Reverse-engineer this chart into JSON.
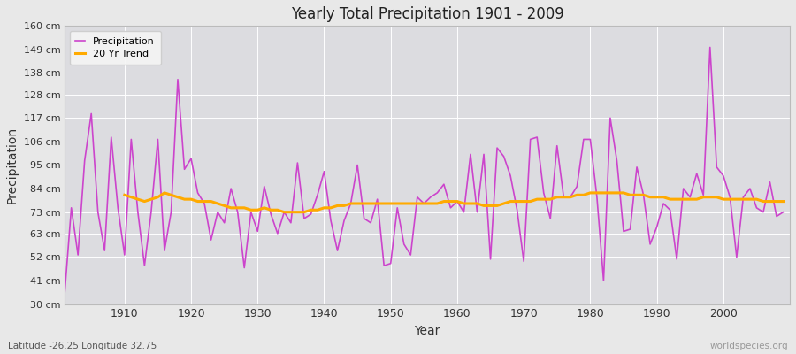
{
  "title": "Yearly Total Precipitation 1901 - 2009",
  "xlabel": "Year",
  "ylabel": "Precipitation",
  "subtitle_left": "Latitude -26.25 Longitude 32.75",
  "subtitle_right": "worldspecies.org",
  "legend_entries": [
    "Precipitation",
    "20 Yr Trend"
  ],
  "precip_color": "#cc44cc",
  "trend_color": "#ffaa00",
  "fig_bg_color": "#e8e8e8",
  "plot_bg_color": "#dcdce0",
  "grid_color": "#ffffff",
  "ylim": [
    30,
    160
  ],
  "yticks": [
    30,
    41,
    52,
    63,
    73,
    84,
    95,
    106,
    117,
    128,
    138,
    149,
    160
  ],
  "ytick_labels": [
    "30 cm",
    "41 cm",
    "52 cm",
    "63 cm",
    "73 cm",
    "84 cm",
    "95 cm",
    "106 cm",
    "117 cm",
    "128 cm",
    "138 cm",
    "149 cm",
    "160 cm"
  ],
  "years": [
    1901,
    1902,
    1903,
    1904,
    1905,
    1906,
    1907,
    1908,
    1909,
    1910,
    1911,
    1912,
    1913,
    1914,
    1915,
    1916,
    1917,
    1918,
    1919,
    1920,
    1921,
    1922,
    1923,
    1924,
    1925,
    1926,
    1927,
    1928,
    1929,
    1930,
    1931,
    1932,
    1933,
    1934,
    1935,
    1936,
    1937,
    1938,
    1939,
    1940,
    1941,
    1942,
    1943,
    1944,
    1945,
    1946,
    1947,
    1948,
    1949,
    1950,
    1951,
    1952,
    1953,
    1954,
    1955,
    1956,
    1957,
    1958,
    1959,
    1960,
    1961,
    1962,
    1963,
    1964,
    1965,
    1966,
    1967,
    1968,
    1969,
    1970,
    1971,
    1972,
    1973,
    1974,
    1975,
    1976,
    1977,
    1978,
    1979,
    1980,
    1981,
    1982,
    1983,
    1984,
    1985,
    1986,
    1987,
    1988,
    1989,
    1990,
    1991,
    1992,
    1993,
    1994,
    1995,
    1996,
    1997,
    1998,
    1999,
    2000,
    2001,
    2002,
    2003,
    2004,
    2005,
    2006,
    2007,
    2008,
    2009
  ],
  "precipitation": [
    35,
    75,
    53,
    97,
    119,
    73,
    55,
    108,
    75,
    53,
    107,
    73,
    48,
    73,
    107,
    55,
    73,
    135,
    93,
    98,
    82,
    77,
    60,
    73,
    68,
    84,
    73,
    47,
    73,
    64,
    85,
    72,
    63,
    73,
    68,
    96,
    70,
    72,
    81,
    92,
    69,
    55,
    69,
    77,
    95,
    70,
    68,
    79,
    48,
    49,
    75,
    58,
    53,
    80,
    77,
    80,
    82,
    86,
    75,
    78,
    73,
    100,
    73,
    100,
    51,
    103,
    99,
    90,
    74,
    50,
    107,
    108,
    82,
    70,
    104,
    80,
    80,
    85,
    107,
    107,
    80,
    41,
    117,
    97,
    64,
    65,
    94,
    81,
    58,
    66,
    77,
    74,
    51,
    84,
    80,
    91,
    81,
    150,
    94,
    90,
    80,
    52,
    80,
    84,
    75,
    73,
    87,
    71,
    73
  ],
  "trend_years": [
    1910,
    1911,
    1912,
    1913,
    1914,
    1915,
    1916,
    1917,
    1918,
    1919,
    1920,
    1921,
    1922,
    1923,
    1924,
    1925,
    1926,
    1927,
    1928,
    1929,
    1930,
    1931,
    1932,
    1933,
    1934,
    1935,
    1936,
    1937,
    1938,
    1939,
    1940,
    1941,
    1942,
    1943,
    1944,
    1945,
    1946,
    1947,
    1948,
    1949,
    1950,
    1951,
    1952,
    1953,
    1954,
    1955,
    1956,
    1957,
    1958,
    1959,
    1960,
    1961,
    1962,
    1963,
    1964,
    1965,
    1966,
    1967,
    1968,
    1969,
    1970,
    1971,
    1972,
    1973,
    1974,
    1975,
    1976,
    1977,
    1978,
    1979,
    1980,
    1981,
    1982,
    1983,
    1984,
    1985,
    1986,
    1987,
    1988,
    1989,
    1990,
    1991,
    1992,
    1993,
    1994,
    1995,
    1996,
    1997,
    1998,
    1999,
    2000,
    2001,
    2002,
    2003,
    2004,
    2005,
    2006,
    2007,
    2008,
    2009
  ],
  "trend": [
    81,
    80,
    79,
    78,
    79,
    80,
    82,
    81,
    80,
    79,
    79,
    78,
    78,
    78,
    77,
    76,
    75,
    75,
    75,
    74,
    74,
    75,
    74,
    74,
    73,
    73,
    73,
    73,
    74,
    74,
    75,
    75,
    76,
    76,
    77,
    77,
    77,
    77,
    77,
    77,
    77,
    77,
    77,
    77,
    77,
    77,
    77,
    77,
    78,
    78,
    78,
    77,
    77,
    77,
    76,
    76,
    76,
    77,
    78,
    78,
    78,
    78,
    79,
    79,
    79,
    80,
    80,
    80,
    81,
    81,
    82,
    82,
    82,
    82,
    82,
    82,
    81,
    81,
    81,
    80,
    80,
    80,
    79,
    79,
    79,
    79,
    79,
    80,
    80,
    80,
    79,
    79,
    79,
    79,
    79,
    79,
    78,
    78,
    78,
    78
  ]
}
